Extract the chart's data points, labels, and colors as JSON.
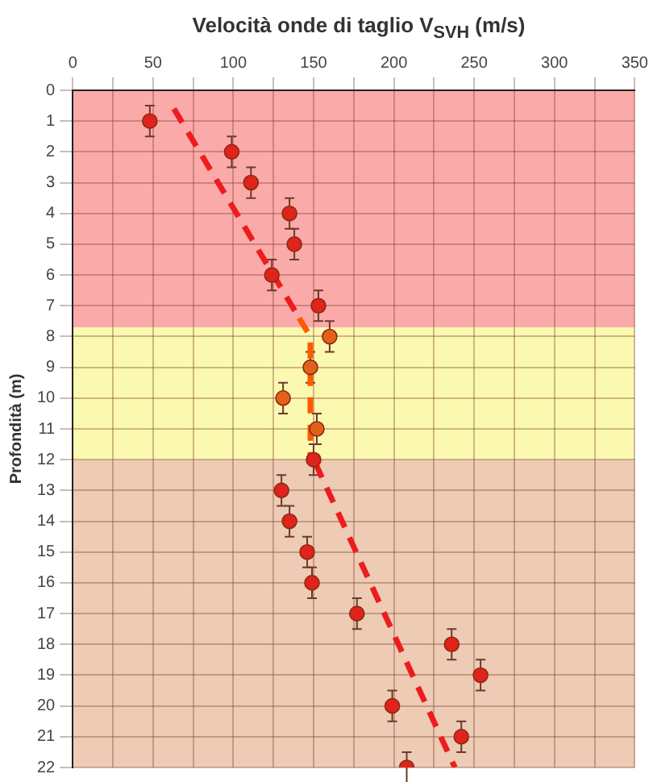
{
  "chart_data": {
    "type": "scatter",
    "xlabel": "Velocità onde di taglio V$_{SVH}$ (m/s)",
    "ylabel": "Profondità (m)",
    "xlim": [
      0,
      350
    ],
    "xticks": [
      0,
      {
        "value": 25,
        "label": null
      },
      50,
      {
        "value": 75,
        "label": null
      },
      100,
      {
        "value": 125,
        "label": null
      },
      150,
      {
        "value": 175,
        "label": null
      },
      200,
      {
        "value": 225,
        "label": null
      },
      250,
      {
        "value": 275,
        "label": null
      },
      300,
      {
        "value": 325,
        "label": null
      },
      350
    ],
    "ylim": [
      22,
      0
    ],
    "yticks": [
      0,
      1,
      2,
      3,
      4,
      5,
      6,
      7,
      8,
      9,
      10,
      11,
      12,
      13,
      14,
      15,
      16,
      17,
      18,
      19,
      20,
      21,
      22
    ],
    "grid": true,
    "legend": false,
    "bands": [
      {
        "axis": "y",
        "from": 0,
        "to": 7.7,
        "color": "#fbaaaa"
      },
      {
        "axis": "y",
        "from": 7.7,
        "to": 12,
        "color": "#fbf8b0"
      },
      {
        "axis": "y",
        "from": 12,
        "to": 22,
        "color": "#edcbb5"
      }
    ],
    "series": [
      {
        "marker": "circle",
        "x": [
          48,
          99,
          111,
          135,
          138,
          124,
          153,
          160,
          148,
          131,
          152,
          150,
          130,
          135,
          146,
          149,
          177,
          236,
          254,
          199,
          242,
          208
        ],
        "values": [
          1,
          2,
          3,
          4,
          5,
          6,
          7,
          8,
          9,
          10,
          11,
          12,
          13,
          14,
          15,
          16,
          17,
          18,
          19,
          20,
          21,
          22
        ],
        "errors": [
          0.5,
          0.5,
          0.5,
          0.5,
          0.5,
          0.5,
          0.5,
          0.5,
          0.5,
          0.5,
          0.5,
          0.5,
          0.5,
          0.5,
          0.5,
          0.5,
          0.5,
          0.5,
          0.5,
          0.5,
          0.5,
          0.5
        ],
        "colors": [
          "#e0231b",
          "#e0231b",
          "#e0231b",
          "#e0231b",
          "#e0231b",
          "#e0231b",
          "#e0231b",
          "#e2601a",
          "#e2601a",
          "#e2601a",
          "#e2601a",
          "#e0231b",
          "#e0231b",
          "#e0231b",
          "#e0231b",
          "#e0231b",
          "#e0231b",
          "#e0231b",
          "#e0231b",
          "#e0231b",
          "#e0231b",
          "#e0231b"
        ]
      },
      {
        "type": "line",
        "marker": "none",
        "color": "#ee1c1c",
        "line_style": "dashed",
        "x": [
          63,
          141
        ],
        "values": [
          0.6,
          7.4
        ]
      },
      {
        "type": "line",
        "marker": "none",
        "color": "#ff5a00",
        "line_style": "dashed",
        "x": [
          141,
          148,
          148
        ],
        "values": [
          7.4,
          8,
          12
        ]
      },
      {
        "type": "line",
        "marker": "none",
        "color": "#ee1c1c",
        "line_style": "dashed",
        "x": [
          151,
          238
        ],
        "values": [
          12.1,
          22
        ]
      }
    ]
  }
}
